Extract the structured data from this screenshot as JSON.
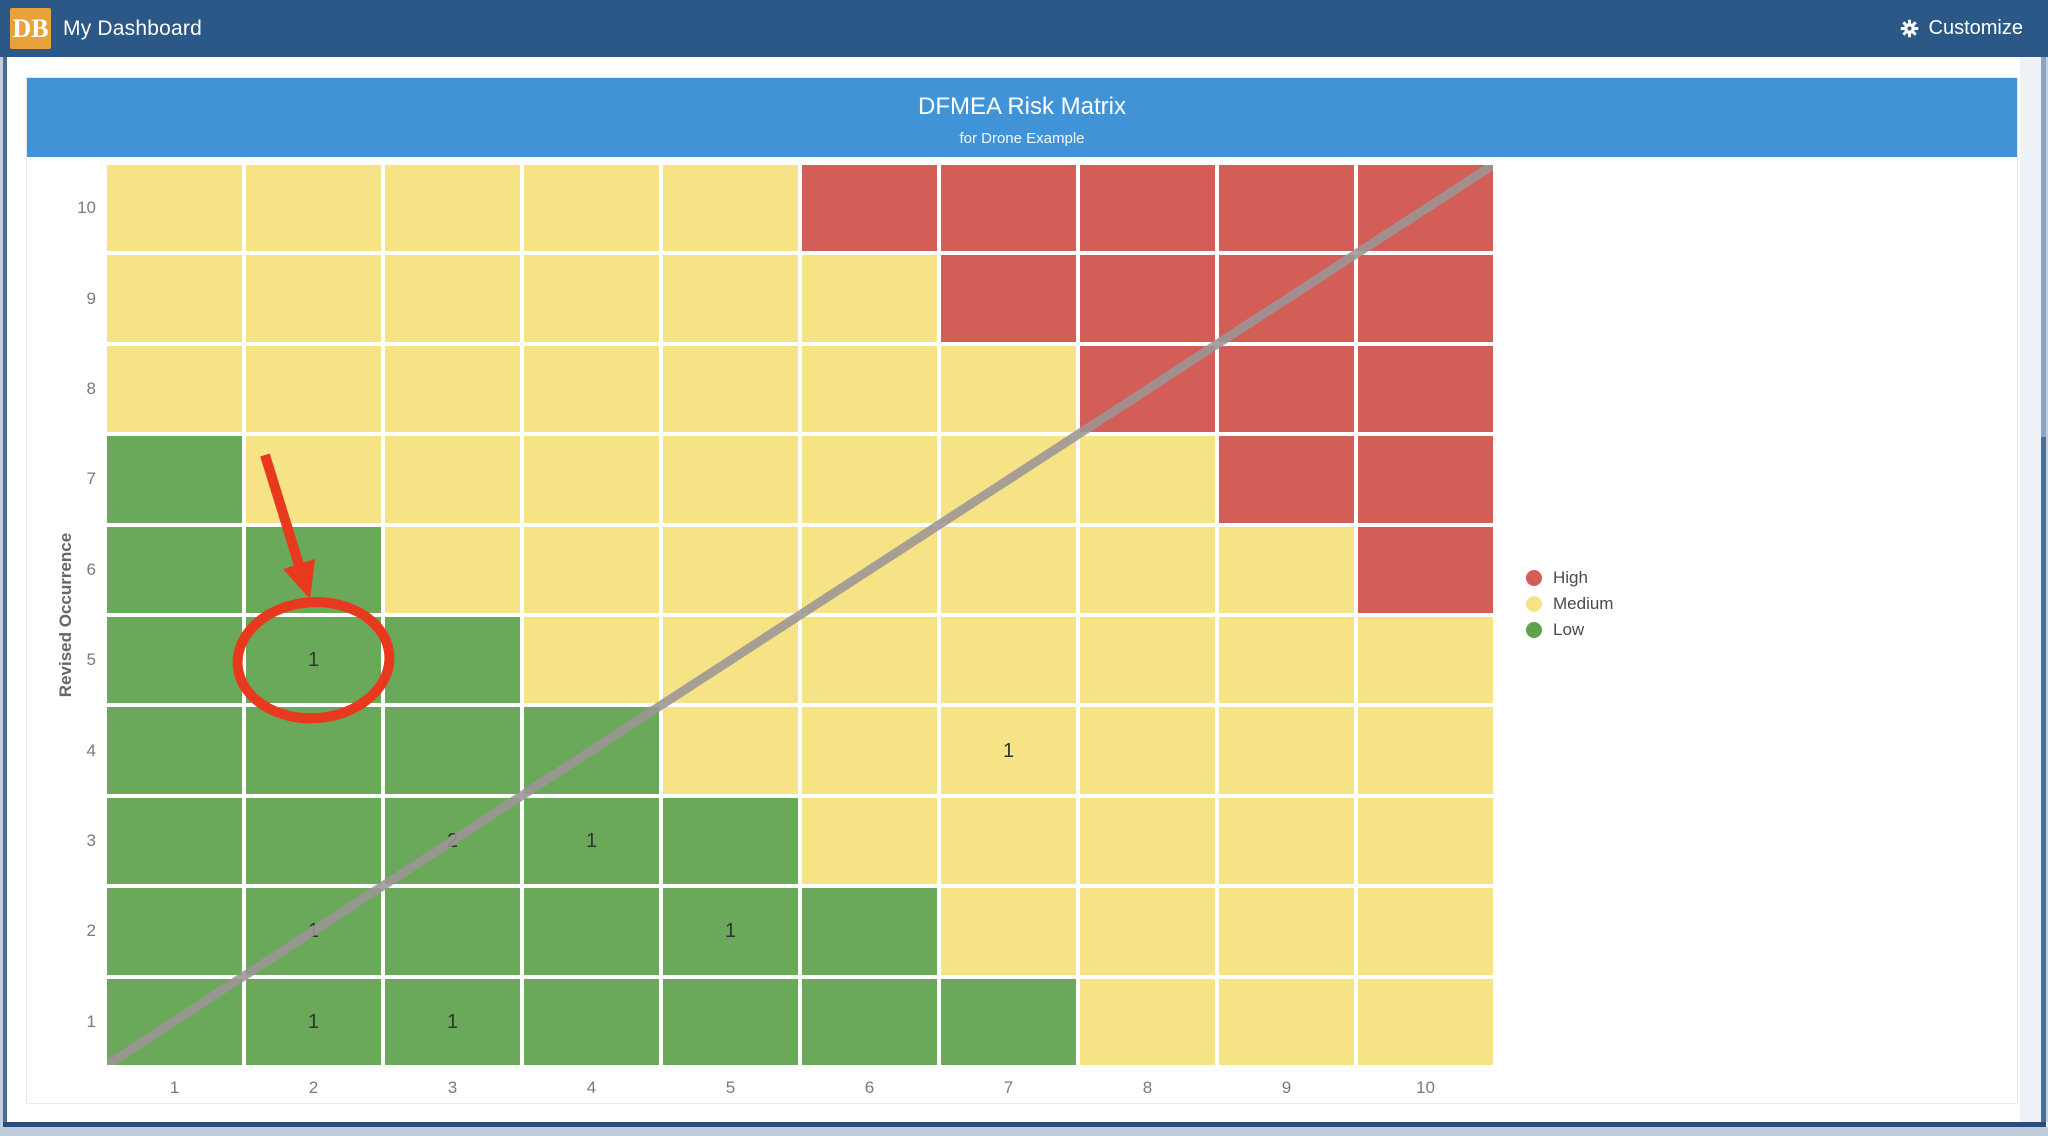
{
  "navbar": {
    "logo_text": "DB",
    "title": "My Dashboard",
    "customize_label": "Customize"
  },
  "card_header": {
    "title": "DFMEA Risk Matrix",
    "subtitle": "for Drone Example"
  },
  "axes": {
    "y_axis_title": "Revised Occurrence",
    "x_tick_labels": [
      "1",
      "2",
      "3",
      "4",
      "5",
      "6",
      "7",
      "8",
      "9",
      "10"
    ],
    "y_tick_labels_top_to_bottom": [
      "10",
      "9",
      "8",
      "7",
      "6",
      "5",
      "4",
      "3",
      "2",
      "1"
    ]
  },
  "legend": {
    "position": "right",
    "items": [
      {
        "label": "High",
        "color": "#d35e57"
      },
      {
        "label": "Medium",
        "color": "#f6e386"
      },
      {
        "label": "Low",
        "color": "#5fa24d"
      }
    ]
  },
  "colors": {
    "navbar_bg": "#2b5886",
    "logo_bg": "#e9a23b",
    "header_bg": "#4093d6",
    "low": "#6aa85a",
    "medium": "#f6e386",
    "high": "#d35e57",
    "diagonal_line": "#9d9597",
    "annotation_red": "#e8391f"
  },
  "chart_data": {
    "type": "heatmap",
    "title": "DFMEA Risk Matrix",
    "subtitle": "for Drone Example",
    "ylabel": "Revised Occurrence",
    "x_range": [
      1,
      10
    ],
    "y_range": [
      1,
      10
    ],
    "grid": true,
    "zone_codes": {
      "G": "Low",
      "Y": "Medium",
      "R": "High"
    },
    "zone_rows_top_to_bottom": [
      "YYYYYRRRRR",
      "YYYYYYRRRR",
      "YYYYYYYRRR",
      "GYYYYYYYRR",
      "GGYYYYYYYR",
      "GGGYYYYYYY",
      "GGGGYYYYYY",
      "GGGGGYYYYY",
      "GGGGGGYYYY",
      "GGGGGGGYYY"
    ],
    "points": [
      {
        "x": 2,
        "y": 5,
        "value": 1
      },
      {
        "x": 7,
        "y": 4,
        "value": 1
      },
      {
        "x": 3,
        "y": 3,
        "value": 2
      },
      {
        "x": 4,
        "y": 3,
        "value": 1
      },
      {
        "x": 2,
        "y": 2,
        "value": 1
      },
      {
        "x": 5,
        "y": 2,
        "value": 1
      },
      {
        "x": 2,
        "y": 1,
        "value": 1
      },
      {
        "x": 3,
        "y": 1,
        "value": 1
      }
    ],
    "diagonal_line": {
      "from_cell": [
        1,
        1
      ],
      "to_cell": [
        10,
        10
      ]
    },
    "annotation": {
      "highlighted_cell": {
        "x": 2,
        "y": 5
      },
      "shapes": [
        "red-arrow",
        "red-ellipse"
      ]
    }
  }
}
